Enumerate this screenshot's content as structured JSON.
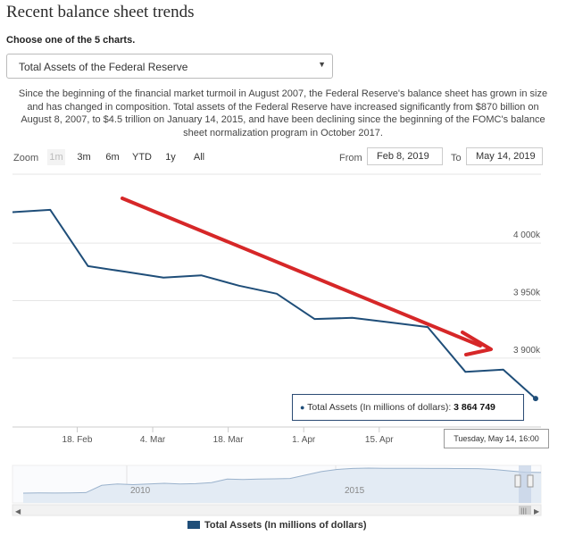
{
  "page": {
    "title": "Recent balance sheet trends",
    "choose_label": "Choose one of the 5 charts.",
    "select_value": "Total Assets of the Federal Reserve",
    "description": "Since the beginning of the financial market turmoil in August 2007, the Federal Reserve's balance sheet has grown in size and has changed in composition. Total assets of the Federal Reserve have increased significantly from $870 billion on August 8, 2007, to $4.5 trillion on January 14, 2015, and have been declining since the beginning of the FOMC's balance sheet normalization program in October 2017."
  },
  "zoom": {
    "label": "Zoom",
    "buttons": [
      "1m",
      "3m",
      "6m",
      "YTD",
      "1y",
      "All"
    ],
    "disabled": "1m"
  },
  "range": {
    "from_label": "From",
    "from_value": "Feb 8, 2019",
    "to_label": "To",
    "to_value": "May 14, 2019"
  },
  "tooltip": {
    "series": "Total Assets (In millions of dollars):",
    "value": "3 864 749",
    "date": "Tuesday, May 14, 16:00"
  },
  "navigator": {
    "labels": [
      "2010",
      "2015"
    ],
    "values": [
      870000,
      900000,
      880000,
      890000,
      950000,
      2000000,
      2200000,
      2100000,
      2200000,
      2300000,
      2200000,
      2250000,
      2400000,
      2900000,
      2850000,
      2900000,
      2950000,
      3000000,
      3500000,
      4000000,
      4300000,
      4450000,
      4500000,
      4480000,
      4470000,
      4460000,
      4450000,
      4450000,
      4440000,
      4420000,
      4300000,
      4100000,
      3900000,
      3865000
    ]
  },
  "legend": {
    "label": "Total Assets (In millions of dollars)"
  },
  "colors": {
    "series": "#1f4e79",
    "annotation_arrow": "#d62728"
  },
  "chart_data": {
    "type": "line",
    "series": [
      {
        "name": "Total Assets (In millions of dollars)",
        "x": [
          "2019-02-06",
          "2019-02-13",
          "2019-02-20",
          "2019-02-27",
          "2019-03-06",
          "2019-03-13",
          "2019-03-20",
          "2019-03-27",
          "2019-04-03",
          "2019-04-10",
          "2019-04-17",
          "2019-04-24",
          "2019-05-01",
          "2019-05-08",
          "2019-05-14"
        ],
        "values": [
          4027000,
          4029000,
          3980000,
          3975000,
          3970000,
          3972000,
          3963000,
          3956000,
          3934000,
          3935000,
          3931000,
          3927000,
          3888000,
          3890000,
          3864749
        ]
      }
    ],
    "x_range": [
      "2019-02-06",
      "2019-05-15"
    ],
    "x_ticks": [
      "18. Feb",
      "4. Mar",
      "18. Mar",
      "1. Apr",
      "15. Apr"
    ],
    "x_tick_dates": [
      "2019-02-18",
      "2019-03-04",
      "2019-03-18",
      "2019-04-01",
      "2019-04-15"
    ],
    "y_ticks": [
      "3 900k",
      "3 950k",
      "4 000k"
    ],
    "y_tick_values": [
      3900000,
      3950000,
      4000000
    ],
    "ylim": [
      3840000,
      4060000
    ],
    "grid": true,
    "y_axis_position": "right"
  }
}
